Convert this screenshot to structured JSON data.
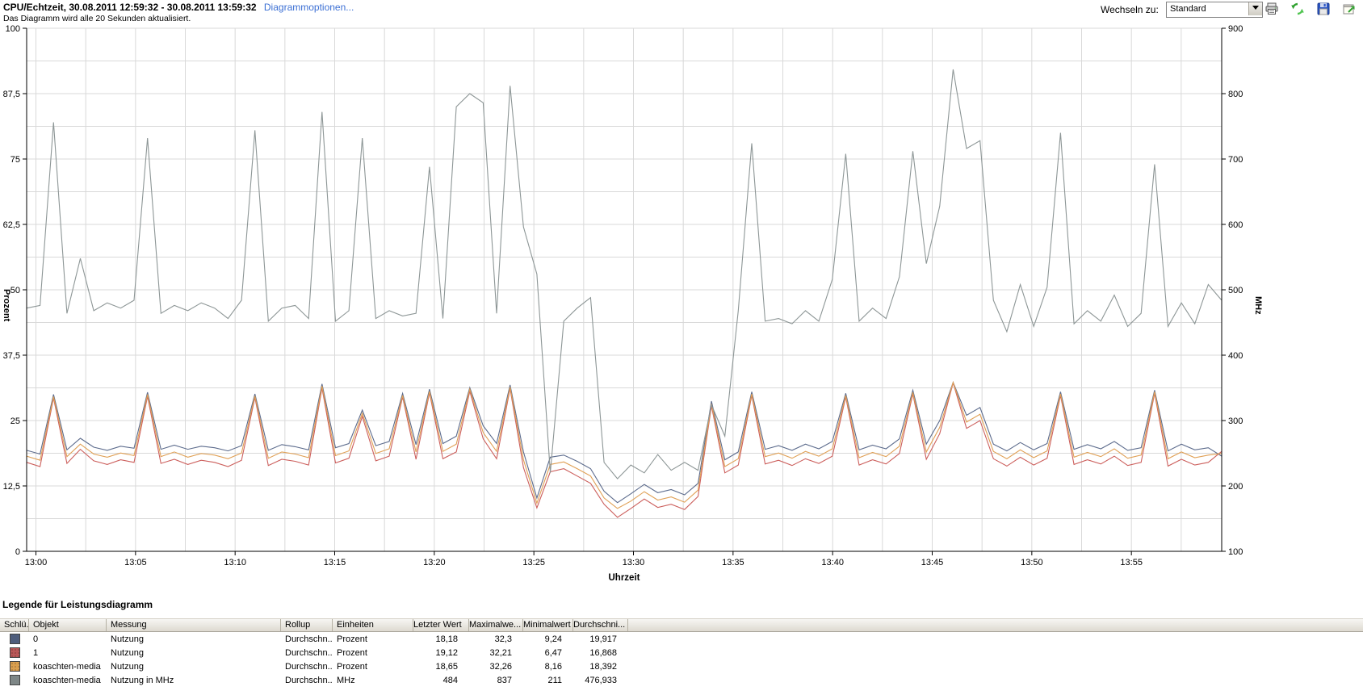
{
  "header": {
    "title": "CPU/Echtzeit, 30.08.2011 12:59:32 - 30.08.2011 13:59:32",
    "options_link": "Diagrammoptionen...",
    "subtitle": "Das Diagramm wird alle 20 Sekunden aktualisiert.",
    "switch_label": "Wechseln zu:",
    "switch_value": "Standard",
    "icons": [
      "printer-icon",
      "refresh-icon",
      "save-icon",
      "export-icon"
    ]
  },
  "chart_data": {
    "type": "line",
    "xlabel": "Uhrzeit",
    "ylabel_left": "Prozent",
    "ylabel_right": "MHz",
    "x_start": "12:59:32",
    "x_end": "13:59:32",
    "sample_interval_seconds": 40,
    "grid": true,
    "y_left_range": [
      0,
      100
    ],
    "y_right_range": [
      100,
      900
    ],
    "y_left_ticks": [
      {
        "v": 100,
        "label": "100"
      },
      {
        "v": 87.5,
        "label": "87,5"
      },
      {
        "v": 75,
        "label": "75"
      },
      {
        "v": 62.5,
        "label": "62,5"
      },
      {
        "v": 50,
        "label": "50"
      },
      {
        "v": 37.5,
        "label": "37,5"
      },
      {
        "v": 25,
        "label": "25"
      },
      {
        "v": 12.5,
        "label": "12,5"
      },
      {
        "v": 0,
        "label": "0"
      }
    ],
    "y_right_ticks": [
      {
        "v": 900,
        "label": "900"
      },
      {
        "v": 800,
        "label": "800"
      },
      {
        "v": 700,
        "label": "700"
      },
      {
        "v": 600,
        "label": "600"
      },
      {
        "v": 500,
        "label": "500"
      },
      {
        "v": 400,
        "label": "400"
      },
      {
        "v": 300,
        "label": "300"
      },
      {
        "v": 200,
        "label": "200"
      },
      {
        "v": 100,
        "label": "100"
      }
    ],
    "x_tick_labels": [
      "13:00",
      "13:05",
      "13:10",
      "13:15",
      "13:20",
      "13:25",
      "13:30",
      "13:35",
      "13:40",
      "13:45",
      "13:50",
      "13:55"
    ],
    "series": [
      {
        "name": "0",
        "metric": "Nutzung",
        "unit": "Prozent",
        "axis": "left",
        "color": "#5c6b8c",
        "values": [
          19.3,
          18.6,
          30,
          19.4,
          21.6,
          19.9,
          19.3,
          20.1,
          19.7,
          30.4,
          19.5,
          20.3,
          19.5,
          20.1,
          19.8,
          19.2,
          20.2,
          30.1,
          19.3,
          20.4,
          20,
          19.4,
          32,
          19.8,
          20.6,
          27,
          20.2,
          21,
          30.2,
          20.4,
          31,
          20.6,
          22,
          31.3,
          24,
          20.6,
          31.8,
          19,
          10.2,
          18,
          18.4,
          17.2,
          15.8,
          11.5,
          9.3,
          11,
          12.8,
          11.2,
          11.8,
          10.8,
          13,
          28.7,
          17.5,
          19,
          30.5,
          19.5,
          20.2,
          19.3,
          20.5,
          19.6,
          21,
          30.2,
          19.4,
          20.3,
          19.6,
          21.5,
          30.8,
          20.5,
          25,
          32.3,
          26,
          27.5,
          20.5,
          19.2,
          20.8,
          19.4,
          20.6,
          30.5,
          19.5,
          20.4,
          19.6,
          21,
          19.3,
          19.8,
          30.8,
          19.2,
          20.5,
          19.4,
          19.8,
          18.2
        ]
      },
      {
        "name": "1",
        "metric": "Nutzung",
        "unit": "Prozent",
        "axis": "left",
        "color": "#cc5f5c",
        "values": [
          17,
          16.2,
          29.3,
          16.8,
          19.5,
          17.3,
          16.6,
          17.5,
          17,
          29.6,
          16.8,
          17.6,
          16.6,
          17.4,
          17,
          16.2,
          17.4,
          29.4,
          16.4,
          17.6,
          17.2,
          16.5,
          31.2,
          16.9,
          17.8,
          25.8,
          17.3,
          18.2,
          29.5,
          17.6,
          30.3,
          17.7,
          19,
          30.6,
          21.5,
          17.7,
          31.1,
          16,
          8.3,
          15.2,
          15.8,
          14.4,
          13,
          9,
          6.5,
          8.2,
          10,
          8.4,
          9,
          8,
          10.5,
          27.8,
          15,
          16.5,
          29.8,
          16.7,
          17.4,
          16.4,
          17.7,
          16.8,
          18.2,
          29.5,
          16.5,
          17.5,
          16.7,
          18.7,
          30.1,
          17.6,
          22.5,
          32.2,
          23.5,
          25,
          17.7,
          16.3,
          18,
          16.5,
          17.8,
          29.8,
          16.6,
          17.5,
          16.7,
          18.2,
          16.4,
          17,
          30.2,
          16.3,
          17.6,
          16.5,
          17,
          19.1
        ]
      },
      {
        "name": "koaschten-media",
        "metric": "Nutzung",
        "unit": "Prozent",
        "axis": "left",
        "color": "#e0a055",
        "values": [
          18.2,
          17.4,
          29.6,
          18.1,
          20.5,
          18.6,
          18,
          18.8,
          18.3,
          30,
          18.1,
          19,
          18,
          18.7,
          18.4,
          17.7,
          18.8,
          29.7,
          17.8,
          19,
          18.6,
          17.9,
          31.6,
          18.3,
          19.2,
          26.4,
          18.7,
          19.6,
          29.8,
          19,
          30.6,
          19.1,
          20.5,
          31,
          22.7,
          19.1,
          31.4,
          17.5,
          9.2,
          16.6,
          17.1,
          15.8,
          14.4,
          10.2,
          8.2,
          9.6,
          11.4,
          9.8,
          10.4,
          9.4,
          11.7,
          28.2,
          16.2,
          17.7,
          30.1,
          18.1,
          18.8,
          17.8,
          19.1,
          18.2,
          19.6,
          29.8,
          17.9,
          18.9,
          18.1,
          20.1,
          30.4,
          19,
          23.7,
          32.3,
          24.7,
          26.2,
          19.1,
          17.7,
          19.4,
          17.9,
          19.2,
          30.1,
          18,
          18.9,
          18.1,
          19.6,
          17.8,
          18.4,
          30.5,
          17.7,
          19,
          17.9,
          18.4,
          18.7
        ]
      },
      {
        "name": "koaschten-media",
        "metric": "Nutzung in MHz",
        "unit": "MHz",
        "axis": "right",
        "color": "#8d9696",
        "values": [
          472,
          476,
          756,
          464,
          548,
          468,
          480,
          472,
          484,
          732,
          464,
          476,
          468,
          480,
          472,
          456,
          484,
          744,
          452,
          472,
          476,
          456,
          772,
          452,
          468,
          732,
          456,
          468,
          460,
          464,
          688,
          456,
          780,
          800,
          786,
          464,
          812,
          596,
          524,
          220,
          452,
          472,
          488,
          236,
          211,
          232,
          220,
          248,
          224,
          236,
          224,
          324,
          276,
          468,
          724,
          452,
          456,
          448,
          468,
          452,
          516,
          708,
          452,
          472,
          456,
          520,
          712,
          540,
          628,
          837,
          716,
          728,
          484,
          436,
          508,
          444,
          504,
          740,
          448,
          468,
          452,
          492,
          444,
          464,
          692,
          444,
          480,
          448,
          508,
          484
        ]
      }
    ]
  },
  "legend": {
    "title": "Legende für Leistungsdiagramm",
    "columns": [
      "Schlü...",
      "Objekt",
      "Messung",
      "Rollup",
      "Einheiten",
      "Letzter Wert",
      "Maximalwe...",
      "Minimalwert",
      "Durchschni...",
      ""
    ],
    "rows": [
      {
        "color": "#4e5d7c",
        "objekt": "0",
        "messung": "Nutzung",
        "rollup": "Durchschn...",
        "einheiten": "Prozent",
        "letzter": "18,18",
        "max": "32,3",
        "min": "9,24",
        "durchschnitt": "19,917"
      },
      {
        "color": "#b95858",
        "objekt": "1",
        "messung": "Nutzung",
        "rollup": "Durchschn...",
        "einheiten": "Prozent",
        "letzter": "19,12",
        "max": "32,21",
        "min": "6,47",
        "durchschnitt": "16,868"
      },
      {
        "color": "#db9f4e",
        "objekt": "koaschten-media",
        "messung": "Nutzung",
        "rollup": "Durchschn...",
        "einheiten": "Prozent",
        "letzter": "18,65",
        "max": "32,26",
        "min": "8,16",
        "durchschnitt": "18,392"
      },
      {
        "color": "#7e8787",
        "objekt": "koaschten-media",
        "messung": "Nutzung in MHz",
        "rollup": "Durchschn...",
        "einheiten": "MHz",
        "letzter": "484",
        "max": "837",
        "min": "211",
        "durchschnitt": "476,933"
      }
    ]
  }
}
